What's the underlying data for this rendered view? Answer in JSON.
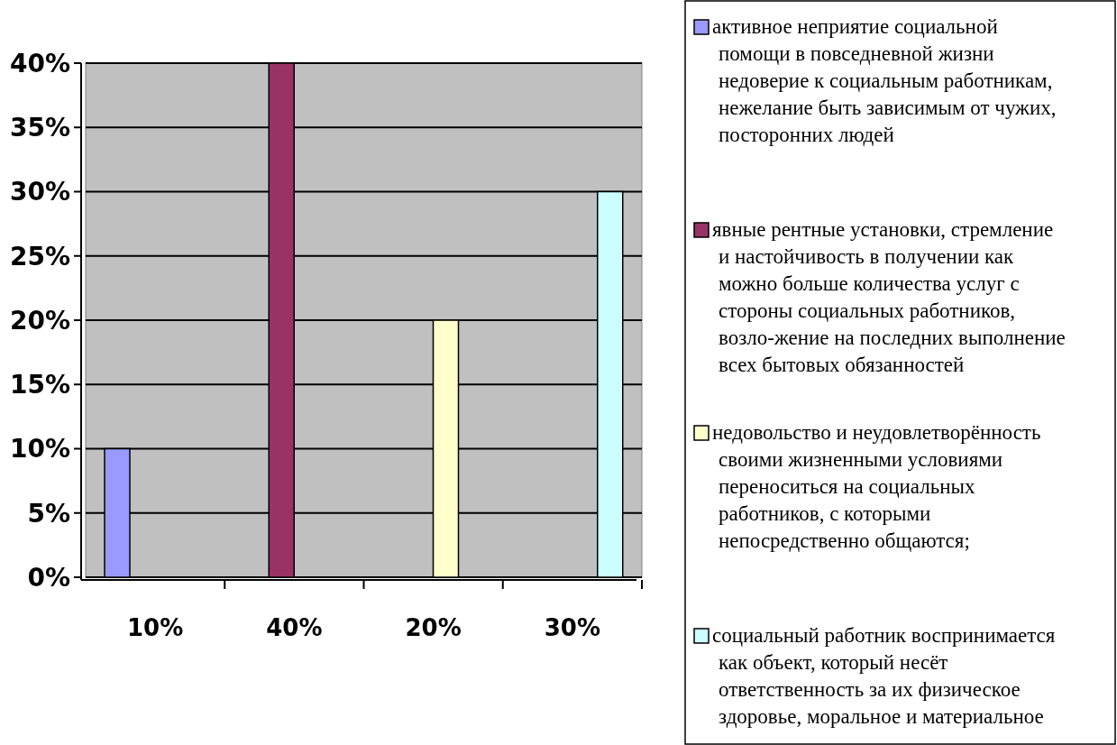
{
  "chart_data": {
    "type": "bar",
    "categories": [
      "10%",
      "40%",
      "20%",
      "30%"
    ],
    "series": [
      {
        "name": "активное неприятие социальной помощи в повседневной жизни недоверие к социальным работникам, нежелание быть зависимым от чужих, посторонних людей",
        "color": "#9999ff",
        "values": [
          10,
          null,
          null,
          null
        ]
      },
      {
        "name": "явные рентные установки, стремление и настойчивость в получении как можно больше количества услуг с стороны социальных работников, возло-жение на последних выполнение всех бытовых обязанностей",
        "color": "#993366",
        "values": [
          null,
          40,
          null,
          null
        ]
      },
      {
        "name": "недовольство и неудовлетворённость своими жизненными условиями переноситься на социальных работников, с которыми непосредственно общаются;",
        "color": "#ffffcc",
        "values": [
          null,
          null,
          20,
          null
        ]
      },
      {
        "name": "социальный работник воспринимается как объект, который несёт ответственность за их физическое здоровье, моральное и материальное",
        "color": "#ccffff",
        "values": [
          null,
          null,
          null,
          30
        ]
      }
    ],
    "ylim": [
      0,
      40
    ],
    "yticks": [
      {
        "value": 0,
        "label": "0%"
      },
      {
        "value": 5,
        "label": "5%"
      },
      {
        "value": 10,
        "label": "10%"
      },
      {
        "value": 15,
        "label": "15%"
      },
      {
        "value": 20,
        "label": "20%"
      },
      {
        "value": 25,
        "label": "25%"
      },
      {
        "value": 30,
        "label": "30%"
      },
      {
        "value": 35,
        "label": "35%"
      },
      {
        "value": 40,
        "label": "40%"
      }
    ],
    "grid": "y",
    "legend": "right"
  }
}
